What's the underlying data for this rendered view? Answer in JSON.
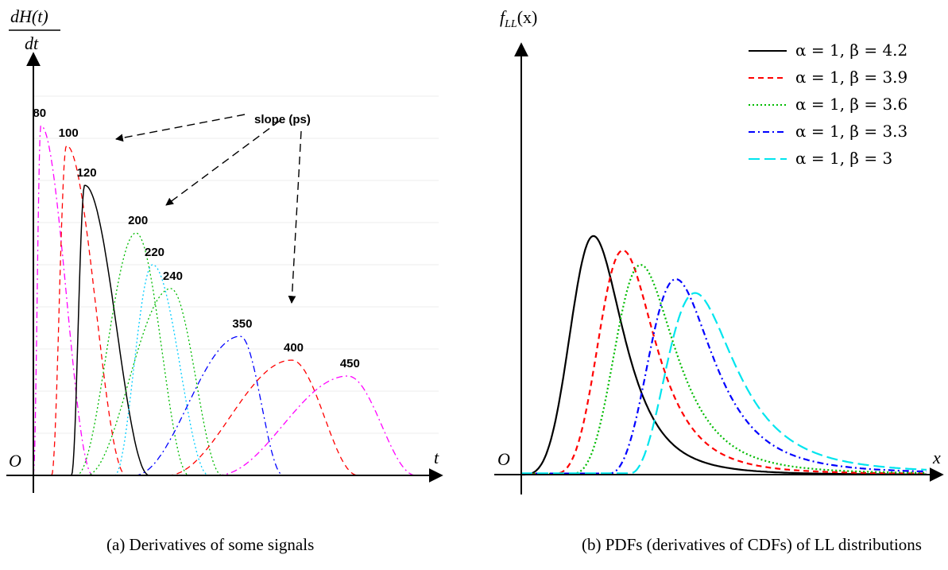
{
  "figures": [
    {
      "caption": "(a) Derivatives of some signals",
      "ylabel_num": "dH(t)",
      "ylabel_den": "dt",
      "xlabel": "t",
      "origin": "O",
      "annotation": "slope (ps)"
    },
    {
      "caption": "(b) PDFs (derivatives of CDFs) of LL distributions",
      "ylabel": "f",
      "ylabel_sub": "LL",
      "ylabel_arg": "(x)",
      "xlabel": "x",
      "origin": "O"
    }
  ],
  "chart_data": [
    {
      "type": "line",
      "title": "",
      "xlabel": "t",
      "ylabel": "dH(t)/dt",
      "grid": true,
      "annotation": "slope (ps)",
      "series": [
        {
          "label": "80",
          "color": "#ff00ff",
          "dash": "dash-dot",
          "start": 0.0,
          "peak": 0.45,
          "end": 3.6,
          "height": 0.88
        },
        {
          "label": "100",
          "color": "#ff0000",
          "dash": "dash",
          "start": 1.1,
          "peak": 2.0,
          "end": 5.6,
          "height": 0.83
        },
        {
          "label": "120",
          "color": "#000000",
          "dash": "solid",
          "start": 2.3,
          "peak": 3.1,
          "end": 7.0,
          "height": 0.73
        },
        {
          "label": "200",
          "color": "#00bb00",
          "dash": "dot",
          "start": 2.6,
          "peak": 6.2,
          "end": 9.4,
          "height": 0.61
        },
        {
          "label": "220",
          "color": "#00ccff",
          "dash": "dot",
          "start": 4.9,
          "peak": 7.2,
          "end": 10.6,
          "height": 0.53
        },
        {
          "label": "240",
          "color": "#00bb00",
          "dash": "dot",
          "start": 3.2,
          "peak": 8.3,
          "end": 11.4,
          "height": 0.47
        },
        {
          "label": "350",
          "color": "#0000ff",
          "dash": "dash-dot",
          "start": 6.1,
          "peak": 12.5,
          "end": 15.1,
          "height": 0.35
        },
        {
          "label": "400",
          "color": "#ff0000",
          "dash": "dash",
          "start": 8.1,
          "peak": 15.6,
          "end": 19.6,
          "height": 0.29
        },
        {
          "label": "450",
          "color": "#ff00ff",
          "dash": "dash-dot",
          "start": 11.1,
          "peak": 19.0,
          "end": 23.1,
          "height": 0.25
        }
      ]
    },
    {
      "type": "line",
      "title": "",
      "xlabel": "x",
      "ylabel": "f_LL(x)",
      "legend_position": "top-right",
      "series": [
        {
          "name": "α = 1, β = 4.2",
          "alpha": 1,
          "beta": 4.2,
          "shift": 0.0,
          "color": "#000000",
          "dash": "solid"
        },
        {
          "name": "α = 1, β = 3.9",
          "alpha": 1,
          "beta": 3.9,
          "shift": 0.38,
          "color": "#ff0000",
          "dash": "dash"
        },
        {
          "name": "α = 1, β = 3.6",
          "alpha": 1,
          "beta": 3.6,
          "shift": 0.62,
          "color": "#00bb00",
          "dash": "dot"
        },
        {
          "name": "α = 1, β = 3.3",
          "alpha": 1,
          "beta": 3.3,
          "shift": 1.08,
          "color": "#0000ff",
          "dash": "dash-dot"
        },
        {
          "name": "α = 1, β = 3",
          "alpha": 1,
          "beta": 3.0,
          "shift": 1.35,
          "color": "#00e5ee",
          "dash": "long-dash"
        }
      ]
    }
  ]
}
